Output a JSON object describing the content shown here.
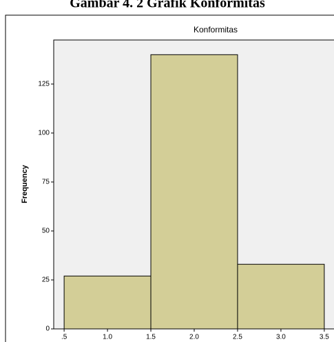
{
  "heading": "Gambar 4. 2 Grafik Konformitas",
  "chart_data": {
    "type": "histogram",
    "title": "Konformitas",
    "y_label": "Frequency",
    "bins": [
      0.5,
      1.5,
      2.5,
      3.5
    ],
    "values": [
      27,
      140,
      33
    ],
    "color": "#d3ce97",
    "xlim": [
      0.38,
      3.62
    ],
    "xticks": [
      {
        "value": 0.5,
        "label": ".5"
      },
      {
        "value": 1,
        "label": "1.0"
      },
      1.5,
      {
        "value": 2,
        "label": "2.0"
      },
      2.5,
      {
        "value": 3,
        "label": "3.0"
      },
      3.5
    ],
    "ylim": [
      0,
      147.5
    ],
    "yticks": [
      0,
      25,
      50,
      75,
      100,
      125
    ]
  }
}
